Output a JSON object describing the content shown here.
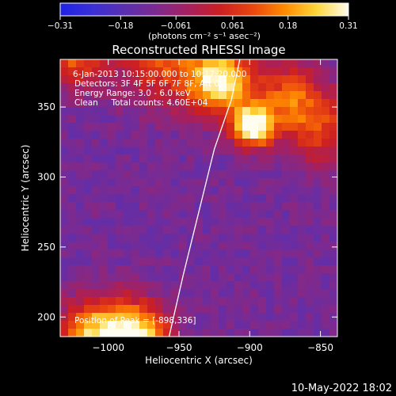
{
  "chart_data": {
    "type": "heatmap",
    "title": "Reconstructed RHESSI Image",
    "xlabel": "Heliocentric X (arcsec)",
    "ylabel": "Heliocentric Y (arcsec)",
    "xlim": [
      -1034,
      -838
    ],
    "ylim": [
      186,
      384
    ],
    "x_ticks": [
      -1000,
      -950,
      -900,
      -850
    ],
    "x_tick_labels": [
      "−1000",
      "−950",
      "−900",
      "−850"
    ],
    "y_ticks": [
      200,
      250,
      300,
      350
    ],
    "y_tick_labels": [
      "200",
      "250",
      "300",
      "350"
    ],
    "colorbar": {
      "range": [
        -0.31,
        0.31
      ],
      "ticks": [
        -0.31,
        -0.18,
        -0.061,
        0.061,
        0.18,
        0.31
      ],
      "tick_labels": [
        "−0.31",
        "−0.18",
        "−0.061",
        "0.061",
        "0.18",
        "0.31"
      ],
      "unit_label": "(photons cm⁻² s⁻¹ asec⁻²)",
      "colors": [
        "#1f22e6",
        "#3a2fd6",
        "#5a2fb0",
        "#7d2a8f",
        "#a6205f",
        "#cc1f22",
        "#e9460f",
        "#ff8a00",
        "#ffd63a",
        "#fffdf0"
      ]
    },
    "annotations": [
      "6-Jan-2013 10:15:00.000 to 10:17:20.000",
      "Detectors: 3F 4F 5F 6F 7F 8F, Att 0",
      "Energy Range: 3.0 - 6.0 keV",
      "Clean     Total counts: 4.60E+04"
    ],
    "peak_label": "Position of Peak = [-898,336]",
    "peak": {
      "x": -898,
      "y": 336
    },
    "limb_points": [
      [
        -957,
        186
      ],
      [
        -947,
        230
      ],
      [
        -936,
        275
      ],
      [
        -925,
        320
      ],
      [
        -913,
        355
      ],
      [
        -907,
        384
      ]
    ],
    "sources": [
      {
        "x": -898,
        "y": 336,
        "amplitude": 1.0,
        "sigma": 10
      },
      {
        "x": -920,
        "y": 368,
        "amplitude": 0.9,
        "sigma": 16
      },
      {
        "x": -870,
        "y": 355,
        "amplitude": 0.55,
        "sigma": 18
      },
      {
        "x": -960,
        "y": 385,
        "amplitude": 0.5,
        "sigma": 22
      },
      {
        "x": -1025,
        "y": 390,
        "amplitude": 0.55,
        "sigma": 18
      },
      {
        "x": -1005,
        "y": 185,
        "amplitude": 0.9,
        "sigma": 20
      },
      {
        "x": -975,
        "y": 190,
        "amplitude": 0.6,
        "sigma": 14
      },
      {
        "x": -845,
        "y": 330,
        "amplitude": 0.35,
        "sigma": 18
      }
    ],
    "background": -0.12
  },
  "timestamp": "10-May-2022 18:02"
}
